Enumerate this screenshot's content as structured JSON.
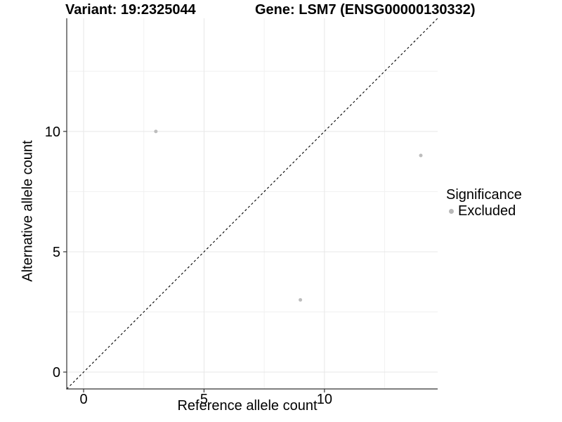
{
  "header": {
    "variant_title": "Variant: 19:2325044",
    "gene_title": "Gene: LSM7 (ENSG00000130332)"
  },
  "chart_data": {
    "type": "scatter",
    "xlabel": "Reference allele count",
    "ylabel": "Alternative allele count",
    "xlim": [
      -0.7,
      14.7
    ],
    "ylim": [
      -0.7,
      14.7
    ],
    "x_ticks": [
      0,
      5,
      10
    ],
    "y_ticks": [
      0,
      5,
      10
    ],
    "x_minor_ticks": [
      2.5,
      7.5,
      12.5
    ],
    "y_minor_ticks": [
      2.5,
      7.5,
      12.5
    ],
    "grid": true,
    "series": [
      {
        "name": "Excluded",
        "color": "#bdbdbd",
        "point_radius": 2.5,
        "points": [
          {
            "x": 3,
            "y": 10
          },
          {
            "x": 9,
            "y": 3
          },
          {
            "x": 14,
            "y": 9
          }
        ]
      }
    ],
    "identity_line": {
      "type": "y=x",
      "style": "dashed",
      "color": "#000000",
      "from": -0.7,
      "to": 14.7
    },
    "legend": {
      "title": "Significance",
      "position": "right",
      "items": [
        {
          "label": "Excluded",
          "color": "#b8b8b8"
        }
      ]
    }
  },
  "colors": {
    "background": "#ffffff",
    "grid_major": "#e7e7e7",
    "grid_minor": "#f1f1f1",
    "axis_line": "#333333",
    "tick_mark": "#333333",
    "tick_label": "#000000",
    "text": "#000000"
  }
}
